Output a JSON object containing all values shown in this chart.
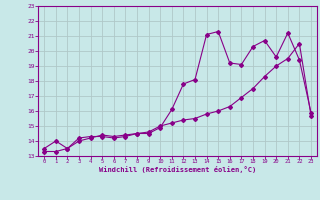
{
  "title": "",
  "xlabel": "Windchill (Refroidissement éolien,°C)",
  "ylabel": "",
  "background_color": "#c8e8e8",
  "grid_color": "#b0c8c8",
  "line_color": "#880088",
  "x_values": [
    0,
    1,
    2,
    3,
    4,
    5,
    6,
    7,
    8,
    9,
    10,
    11,
    12,
    13,
    14,
    15,
    16,
    17,
    18,
    19,
    20,
    21,
    22,
    23
  ],
  "line1_y": [
    13.5,
    14.0,
    13.5,
    14.2,
    14.3,
    14.3,
    14.2,
    14.3,
    14.5,
    14.5,
    14.9,
    16.1,
    17.8,
    18.1,
    21.1,
    21.3,
    19.2,
    19.1,
    20.3,
    20.7,
    19.6,
    21.2,
    19.4,
    15.9
  ],
  "line2_y": [
    13.3,
    13.3,
    13.5,
    14.0,
    14.2,
    14.4,
    14.3,
    14.4,
    14.5,
    14.6,
    15.0,
    15.2,
    15.4,
    15.5,
    15.8,
    16.0,
    16.3,
    16.9,
    17.5,
    18.3,
    19.0,
    19.5,
    20.5,
    15.7
  ],
  "ylim": [
    13,
    23
  ],
  "xlim": [
    -0.5,
    23.5
  ],
  "yticks": [
    13,
    14,
    15,
    16,
    17,
    18,
    19,
    20,
    21,
    22,
    23
  ],
  "xticks": [
    0,
    1,
    2,
    3,
    4,
    5,
    6,
    7,
    8,
    9,
    10,
    11,
    12,
    13,
    14,
    15,
    16,
    17,
    18,
    19,
    20,
    21,
    22,
    23
  ]
}
